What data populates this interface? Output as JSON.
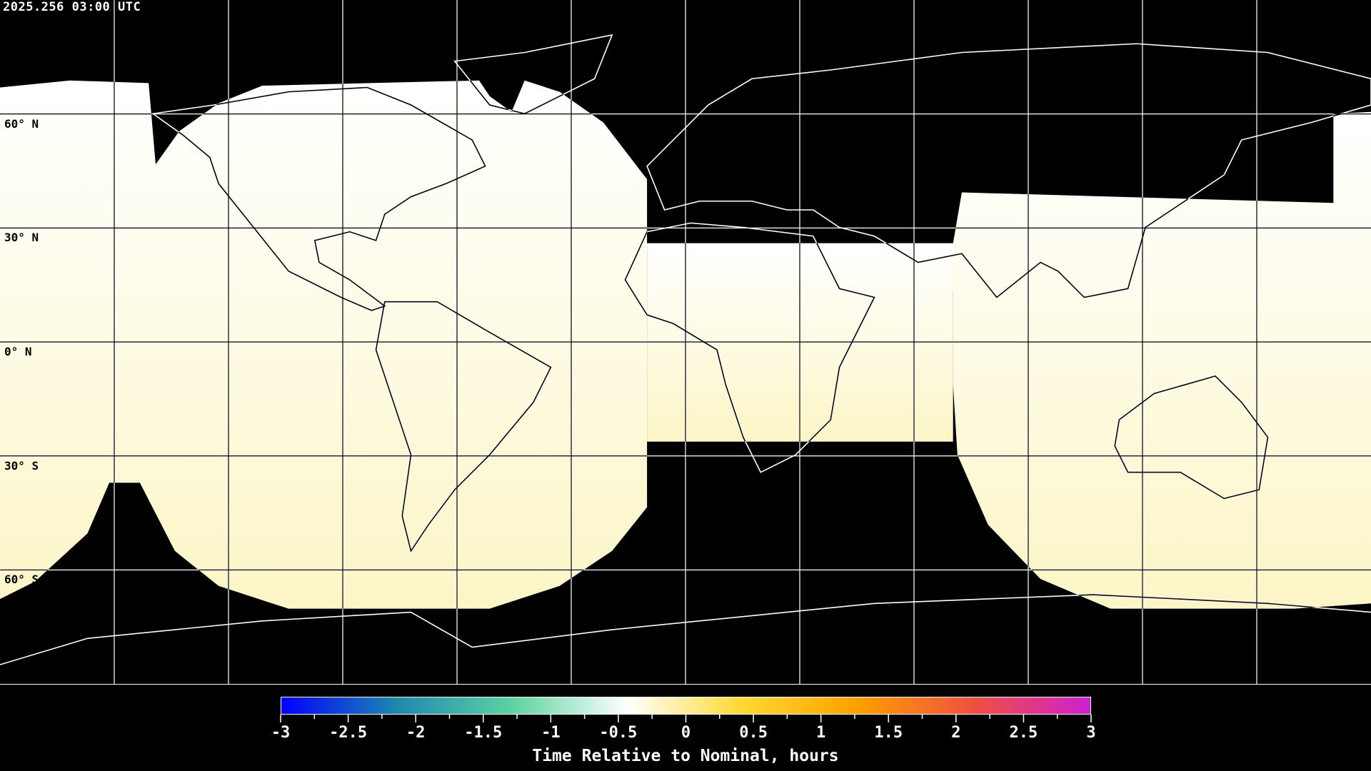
{
  "title": "2025.256 03:00 UTC",
  "map": {
    "projection": "equirectangular",
    "lon_range": [
      -180,
      180
    ],
    "lat_range": [
      -90,
      90
    ],
    "grid_spacing_deg": 30,
    "lat_labels": [
      "60° N",
      "30° N",
      "0° N",
      "30° S",
      "60° S"
    ],
    "coverage_fill_color": "#fdf9d6",
    "no_data_color": "#000000",
    "coastline_color": "#ffffff"
  },
  "colorbar": {
    "title": "Time Relative to Nominal, hours",
    "range": [
      -3,
      3
    ],
    "tick_labels": [
      "-3",
      "-2.5",
      "-2",
      "-1.5",
      "-1",
      "-0.5",
      "0",
      "0.5",
      "1",
      "1.5",
      "2",
      "2.5",
      "3"
    ],
    "minor_tick_step": 0.25,
    "colors": [
      "#0000ff",
      "#1e88b0",
      "#5ed3a0",
      "#ffffff",
      "#ffd830",
      "#ff9f00",
      "#f04f40",
      "#d020d0"
    ]
  }
}
